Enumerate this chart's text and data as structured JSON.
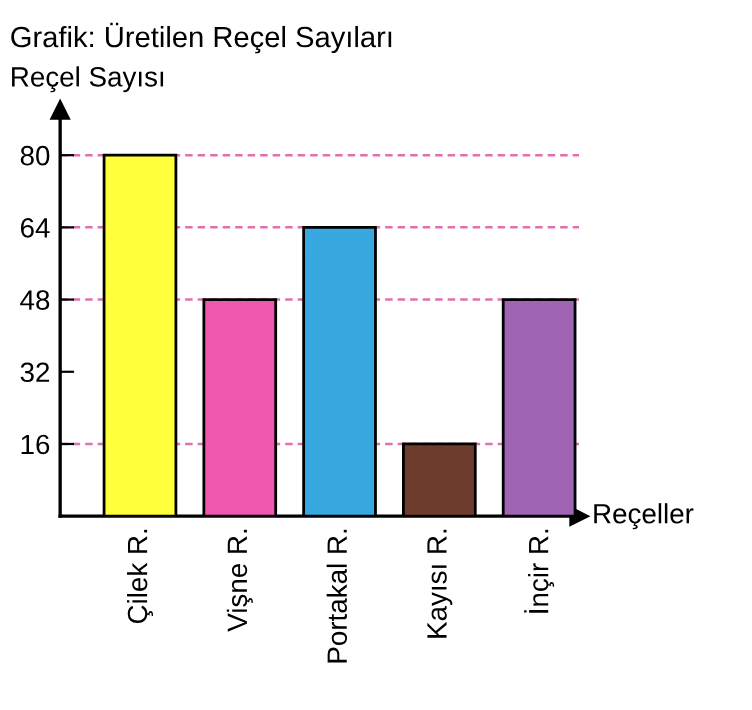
{
  "chart_data": {
    "type": "bar",
    "title": "Grafik: Üretilen Reçel Sayıları",
    "ylabel": "Reçel Sayısı",
    "xlabel": "Reçeller",
    "categories": [
      "Çilek R.",
      "Vişne R.",
      "Portakal R.",
      "Kayısı R.",
      "İnçir R."
    ],
    "values": [
      80,
      48,
      64,
      16,
      48
    ],
    "colors": [
      "#ffff3c",
      "#f058b0",
      "#38a8e0",
      "#6e3c2c",
      "#a064b4"
    ],
    "ylim": [
      0,
      90
    ],
    "yticks": [
      16,
      32,
      48,
      64,
      80
    ],
    "ref_lines": [
      {
        "axis": "y",
        "value": 80,
        "color": "#e070b0",
        "line_style": "dashed"
      },
      {
        "axis": "y",
        "value": 64,
        "color": "#e070b0",
        "line_style": "dashed"
      },
      {
        "axis": "y",
        "value": 48,
        "color": "#e070b0",
        "line_style": "dashed"
      },
      {
        "axis": "y",
        "value": 16,
        "color": "#e070b0",
        "line_style": "dashed"
      }
    ],
    "grid": false,
    "legend": false
  }
}
